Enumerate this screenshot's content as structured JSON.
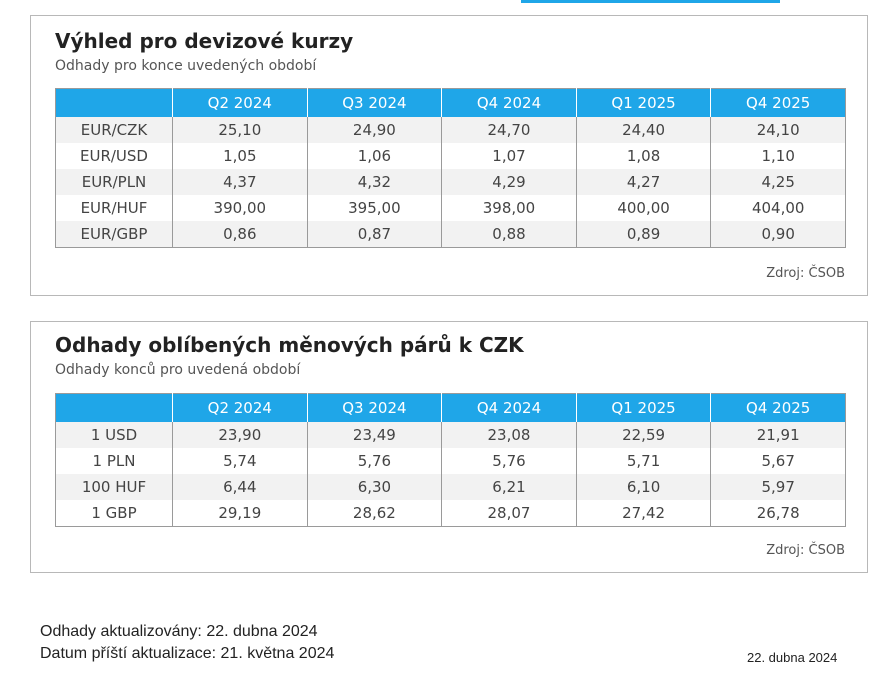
{
  "panel1": {
    "title": "Výhled pro devizové kurzy",
    "subtitle": "Odhady pro konce uvedených období",
    "source": "Zdroj: ČSOB",
    "headers": [
      "",
      "Q2 2024",
      "Q3 2024",
      "Q4 2024",
      "Q1 2025",
      "Q4 2025"
    ],
    "rows": [
      [
        "EUR/CZK",
        "25,10",
        "24,90",
        "24,70",
        "24,40",
        "24,10"
      ],
      [
        "EUR/USD",
        "1,05",
        "1,06",
        "1,07",
        "1,08",
        "1,10"
      ],
      [
        "EUR/PLN",
        "4,37",
        "4,32",
        "4,29",
        "4,27",
        "4,25"
      ],
      [
        "EUR/HUF",
        "390,00",
        "395,00",
        "398,00",
        "400,00",
        "404,00"
      ],
      [
        "EUR/GBP",
        "0,86",
        "0,87",
        "0,88",
        "0,89",
        "0,90"
      ]
    ]
  },
  "panel2": {
    "title": "Odhady oblíbených měnových párů k CZK",
    "subtitle": "Odhady konců pro uvedená období",
    "source": "Zdroj: ČSOB",
    "headers": [
      "",
      "Q2 2024",
      "Q3 2024",
      "Q4 2024",
      "Q1 2025",
      "Q4 2025"
    ],
    "rows": [
      [
        "1 USD",
        "23,90",
        "23,49",
        "23,08",
        "22,59",
        "21,91"
      ],
      [
        "1 PLN",
        "5,74",
        "5,76",
        "5,76",
        "5,71",
        "5,67"
      ],
      [
        "100 HUF",
        "6,44",
        "6,30",
        "6,21",
        "6,10",
        "5,97"
      ],
      [
        "1 GBP",
        "29,19",
        "28,62",
        "28,07",
        "27,42",
        "26,78"
      ]
    ]
  },
  "footer": {
    "updated": "Odhady aktualizovány: 22. dubna 2024",
    "next_update": "Datum příští aktualizace: 21. května 2024",
    "date": "22. dubna 2024"
  },
  "colors": {
    "header_bg": "#1fa6e8",
    "accent_bar": "#1fa6e8"
  }
}
